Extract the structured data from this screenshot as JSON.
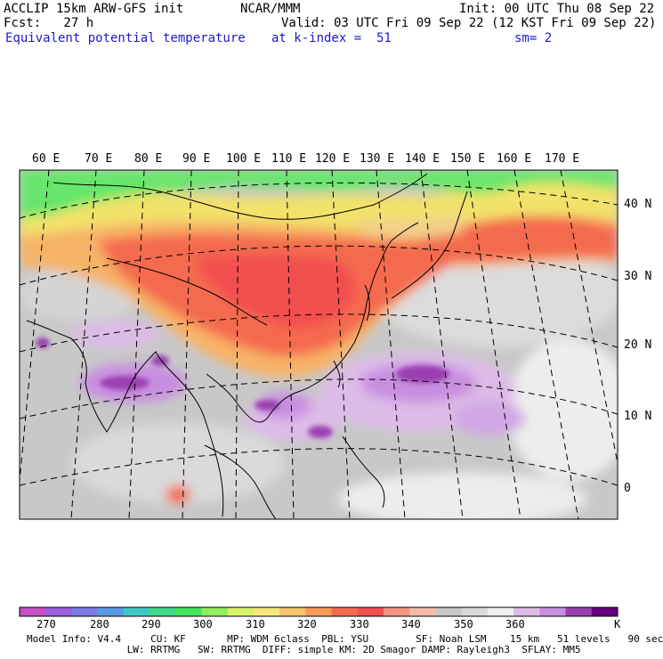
{
  "header": {
    "line1_left": "ACCLIP 15km ARW-GFS init",
    "line1_mid": "NCAR/MMM",
    "line1_right": "Init: 00 UTC Thu 08 Sep 22",
    "line2_left": "Fcst:   27 h",
    "line2_right": "Valid: 03 UTC Fri 09 Sep 22 (12 KST Fri 09 Sep 22)",
    "line3_left": "Equivalent potential temperature",
    "line3_mid": "at k-index =  51",
    "line3_right": "sm= 2"
  },
  "map": {
    "lon_labels": [
      "60 E",
      "70 E",
      "80 E",
      "90 E",
      "100 E",
      "110 E",
      "120 E",
      "130 E",
      "140 E",
      "150 E",
      "160 E",
      "170 E"
    ],
    "lat_labels": [
      "40 N",
      "30 N",
      "20 N",
      "10 N",
      "0"
    ]
  },
  "colorbar": {
    "unit": "K",
    "labels": [
      "270",
      "280",
      "290",
      "300",
      "310",
      "320",
      "330",
      "340",
      "350",
      "360"
    ],
    "colors": [
      "#c84fc8",
      "#9b5fe0",
      "#7b7be8",
      "#5a9ae6",
      "#3fc8c8",
      "#3fd98c",
      "#44e65c",
      "#8ef05a",
      "#d8f26a",
      "#f7e87a",
      "#f7c46a",
      "#f79a58",
      "#f46a50",
      "#f24f4f",
      "#f49480",
      "#f2bca8",
      "#c8c8c8",
      "#dadada",
      "#f0f0f0",
      "#ddbbe8",
      "#c88ee0",
      "#9a40b0",
      "#6a0080"
    ]
  },
  "footer": {
    "line1": "Model Info: V4.4     CU: KF       MP: WDM 6class  PBL: YSU        SF: Noah LSM    15 km   51 levels   90 sec",
    "line2": "                 LW: RRTMG   SW: RRTMG  DIFF: simple KM: 2D Smagor DAMP: Rayleigh3  SFLAY: MM5"
  }
}
